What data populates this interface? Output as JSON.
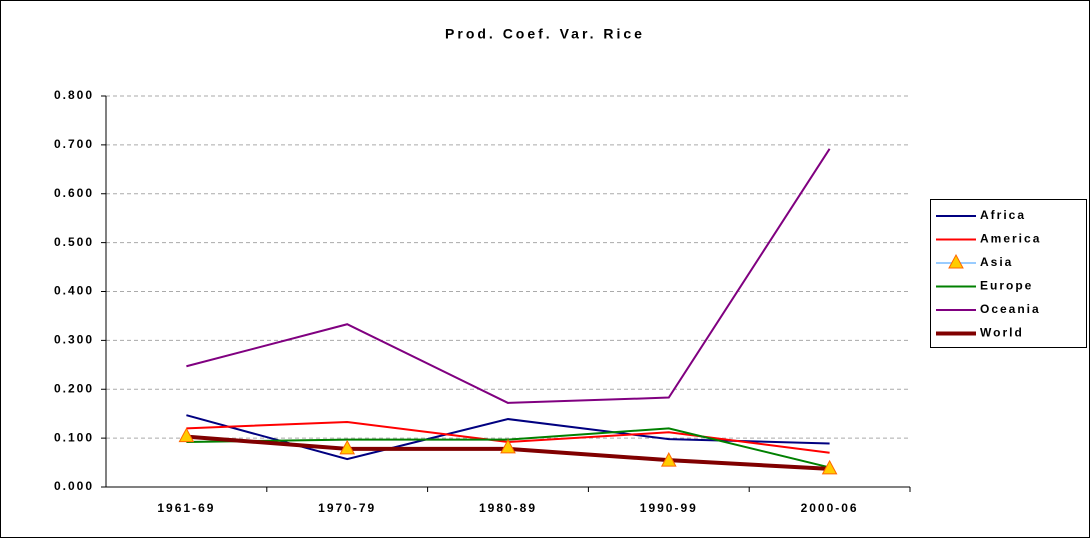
{
  "chart_data": {
    "type": "line",
    "title": "Prod. Coef. Var. Rice",
    "categories": [
      "1961-69",
      "1970-79",
      "1980-89",
      "1990-99",
      "2000-06"
    ],
    "series": [
      {
        "name": "Africa",
        "color": "#000080",
        "values": [
          0.147,
          0.057,
          0.139,
          0.098,
          0.089
        ]
      },
      {
        "name": "America",
        "color": "#ff0000",
        "values": [
          0.12,
          0.133,
          0.092,
          0.112,
          0.07
        ]
      },
      {
        "name": "Asia",
        "color": "#99ccff",
        "marker": "triangle",
        "marker_color": "#ffcc00",
        "values": [
          0.103,
          0.078,
          0.08,
          0.053,
          0.037
        ]
      },
      {
        "name": "Europe",
        "color": "#008000",
        "values": [
          0.092,
          0.097,
          0.097,
          0.12,
          0.04
        ]
      },
      {
        "name": "Oceania",
        "color": "#800080",
        "values": [
          0.247,
          0.333,
          0.172,
          0.183,
          0.692
        ]
      },
      {
        "name": "World",
        "color": "#800000",
        "values": [
          0.103,
          0.078,
          0.078,
          0.055,
          0.037
        ]
      }
    ],
    "ylim": [
      0,
      0.8
    ],
    "yticks": [
      {
        "value": 0,
        "label": "0.000"
      },
      {
        "value": 0.1,
        "label": "0.100"
      },
      {
        "value": 0.2,
        "label": "0.200"
      },
      {
        "value": 0.3,
        "label": "0.300"
      },
      {
        "value": 0.4,
        "label": "0.400"
      },
      {
        "value": 0.5,
        "label": "0.500"
      },
      {
        "value": 0.6,
        "label": "0.600"
      },
      {
        "value": 0.7,
        "label": "0.700"
      },
      {
        "value": 0.8,
        "label": "0.800"
      }
    ],
    "grid": true,
    "legend": "right"
  }
}
